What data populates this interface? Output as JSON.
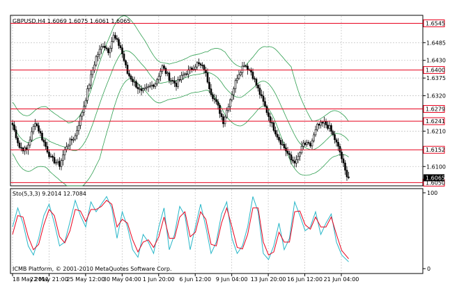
{
  "colors": {
    "background": "#ffffff",
    "grid": "#c8c8c8",
    "candle": "#000000",
    "bands": "#2e9e4f",
    "level_line": "#e8001c",
    "stoch_main": "#26b6c8",
    "stoch_signal": "#e8001c",
    "price_tag_bg": "#ffffff",
    "current_tag_bg": "#000000"
  },
  "chart_data": [
    {
      "type": "candlestick",
      "title": "GBPUSD,H4  1.6069 1.6075 1.6061 1.6065",
      "ylim": [
        1.604,
        1.657
      ],
      "y_ticks": [
        "1.6485",
        "1.6430",
        "1.6375",
        "1.6320",
        "1.6210",
        "1.6100"
      ],
      "x_ticks": [
        "18 May 2011",
        "22 May 21:00",
        "25 May 12:00",
        "30 May 04:00",
        "1 Jun 20:00",
        "6 Jun 12:00",
        "9 Jun 04:00",
        "13 Jun 20:00",
        "16 Jun 12:00",
        "21 Jun 04:00"
      ],
      "levels": [
        {
          "value": 1.6545,
          "label": "1.6545"
        },
        {
          "value": 1.64,
          "label": "1.6400"
        },
        {
          "value": 1.6279,
          "label": "1.6279"
        },
        {
          "value": 1.6241,
          "label": "1.6241"
        },
        {
          "value": 1.6152,
          "label": "1.6152"
        },
        {
          "value": 1.605,
          "label": "1.6050"
        }
      ],
      "current_price": {
        "value": 1.6065,
        "label": "1.6065"
      },
      "close_path": [
        [
          0,
          1.623
        ],
        [
          4,
          1.616
        ],
        [
          8,
          1.615
        ],
        [
          13,
          1.624
        ],
        [
          18,
          1.6175
        ],
        [
          22,
          1.6125
        ],
        [
          27,
          1.6105
        ],
        [
          31,
          1.6165
        ],
        [
          36,
          1.6195
        ],
        [
          41,
          1.629
        ],
        [
          45,
          1.638
        ],
        [
          48,
          1.644
        ],
        [
          52,
          1.648
        ],
        [
          55,
          1.646
        ],
        [
          58,
          1.6505
        ],
        [
          62,
          1.647
        ],
        [
          66,
          1.639
        ],
        [
          70,
          1.636
        ],
        [
          74,
          1.633
        ],
        [
          78,
          1.6345
        ],
        [
          82,
          1.636
        ],
        [
          86,
          1.641
        ],
        [
          90,
          1.6375
        ],
        [
          94,
          1.6355
        ],
        [
          98,
          1.6385
        ],
        [
          102,
          1.64
        ],
        [
          106,
          1.642
        ],
        [
          110,
          1.6405
        ],
        [
          114,
          1.633
        ],
        [
          118,
          1.6285
        ],
        [
          121,
          1.624
        ],
        [
          125,
          1.631
        ],
        [
          129,
          1.638
        ],
        [
          133,
          1.642
        ],
        [
          137,
          1.6395
        ],
        [
          141,
          1.634
        ],
        [
          145,
          1.6285
        ],
        [
          149,
          1.623
        ],
        [
          153,
          1.6185
        ],
        [
          157,
          1.615
        ],
        [
          160,
          1.612
        ],
        [
          163,
          1.6115
        ],
        [
          167,
          1.617
        ],
        [
          171,
          1.6165
        ],
        [
          175,
          1.6225
        ],
        [
          179,
          1.6235
        ],
        [
          182,
          1.622
        ],
        [
          185,
          1.6185
        ],
        [
          188,
          1.6145
        ],
        [
          191,
          1.6085
        ],
        [
          193,
          1.6065
        ]
      ],
      "bollinger_offsets": [
        [
          0,
          0.007,
          0.009
        ],
        [
          20,
          0.01,
          0.009
        ],
        [
          32,
          0.008,
          0.012
        ],
        [
          42,
          0.0115,
          0.013
        ],
        [
          50,
          0.013,
          0.017
        ],
        [
          58,
          0.0125,
          0.013
        ],
        [
          68,
          0.01,
          0.008
        ],
        [
          90,
          0.0055,
          0.0055
        ],
        [
          112,
          0.0065,
          0.0055
        ],
        [
          122,
          0.011,
          0.0085
        ],
        [
          134,
          0.009,
          0.009
        ],
        [
          146,
          0.011,
          0.0075
        ],
        [
          160,
          0.019,
          0.011
        ],
        [
          172,
          0.009,
          0.0075
        ],
        [
          186,
          0.007,
          0.007
        ],
        [
          193,
          0.006,
          0.005
        ]
      ]
    },
    {
      "type": "line",
      "title": "Sto(5,3,3) 9.2014 12.7084",
      "ylim": [
        0,
        100
      ],
      "y_ticks": [
        "100",
        "0"
      ],
      "series": [
        {
          "name": "Sto(5,3,3)",
          "points": [
            [
              0,
              55
            ],
            [
              3,
              80
            ],
            [
              6,
              60
            ],
            [
              9,
              30
            ],
            [
              12,
              18
            ],
            [
              15,
              40
            ],
            [
              18,
              70
            ],
            [
              21,
              85
            ],
            [
              24,
              60
            ],
            [
              27,
              30
            ],
            [
              30,
              35
            ],
            [
              33,
              62
            ],
            [
              36,
              90
            ],
            [
              39,
              70
            ],
            [
              42,
              55
            ],
            [
              45,
              88
            ],
            [
              48,
              75
            ],
            [
              51,
              85
            ],
            [
              54,
              95
            ],
            [
              57,
              80
            ],
            [
              60,
              40
            ],
            [
              63,
              75
            ],
            [
              66,
              55
            ],
            [
              69,
              25
            ],
            [
              72,
              15
            ],
            [
              75,
              45
            ],
            [
              78,
              35
            ],
            [
              81,
              20
            ],
            [
              84,
              55
            ],
            [
              87,
              80
            ],
            [
              90,
              25
            ],
            [
              93,
              45
            ],
            [
              96,
              82
            ],
            [
              99,
              70
            ],
            [
              102,
              25
            ],
            [
              105,
              55
            ],
            [
              108,
              85
            ],
            [
              111,
              55
            ],
            [
              114,
              20
            ],
            [
              117,
              35
            ],
            [
              120,
              72
            ],
            [
              123,
              88
            ],
            [
              126,
              40
            ],
            [
              129,
              20
            ],
            [
              132,
              30
            ],
            [
              135,
              55
            ],
            [
              138,
              95
            ],
            [
              141,
              75
            ],
            [
              144,
              20
            ],
            [
              147,
              12
            ],
            [
              150,
              30
            ],
            [
              153,
              60
            ],
            [
              156,
              25
            ],
            [
              159,
              40
            ],
            [
              162,
              88
            ],
            [
              165,
              70
            ],
            [
              168,
              50
            ],
            [
              171,
              55
            ],
            [
              174,
              75
            ],
            [
              177,
              45
            ],
            [
              180,
              60
            ],
            [
              183,
              72
            ],
            [
              186,
              35
            ],
            [
              189,
              18
            ],
            [
              193,
              9
            ]
          ]
        },
        {
          "name": "Signal",
          "points": [
            [
              0,
              45
            ],
            [
              3,
              70
            ],
            [
              6,
              68
            ],
            [
              9,
              42
            ],
            [
              12,
              25
            ],
            [
              15,
              32
            ],
            [
              18,
              58
            ],
            [
              21,
              78
            ],
            [
              24,
              70
            ],
            [
              27,
              42
            ],
            [
              30,
              34
            ],
            [
              33,
              50
            ],
            [
              36,
              78
            ],
            [
              39,
              76
            ],
            [
              42,
              62
            ],
            [
              45,
              78
            ],
            [
              48,
              78
            ],
            [
              51,
              82
            ],
            [
              54,
              90
            ],
            [
              57,
              85
            ],
            [
              60,
              55
            ],
            [
              63,
              65
            ],
            [
              66,
              60
            ],
            [
              69,
              38
            ],
            [
              72,
              22
            ],
            [
              75,
              35
            ],
            [
              78,
              38
            ],
            [
              81,
              28
            ],
            [
              84,
              42
            ],
            [
              87,
              68
            ],
            [
              90,
              40
            ],
            [
              93,
              40
            ],
            [
              96,
              68
            ],
            [
              99,
              75
            ],
            [
              102,
              42
            ],
            [
              105,
              48
            ],
            [
              108,
              75
            ],
            [
              111,
              65
            ],
            [
              114,
              32
            ],
            [
              117,
              30
            ],
            [
              120,
              60
            ],
            [
              123,
              80
            ],
            [
              126,
              55
            ],
            [
              129,
              28
            ],
            [
              132,
              26
            ],
            [
              135,
              45
            ],
            [
              138,
              80
            ],
            [
              141,
              80
            ],
            [
              144,
              35
            ],
            [
              147,
              18
            ],
            [
              150,
              22
            ],
            [
              153,
              48
            ],
            [
              156,
              35
            ],
            [
              159,
              35
            ],
            [
              162,
              75
            ],
            [
              165,
              76
            ],
            [
              168,
              58
            ],
            [
              171,
              52
            ],
            [
              174,
              68
            ],
            [
              177,
              55
            ],
            [
              180,
              55
            ],
            [
              183,
              68
            ],
            [
              186,
              45
            ],
            [
              189,
              24
            ],
            [
              193,
              13
            ]
          ]
        }
      ]
    }
  ],
  "footer": {
    "copyright": "ICMB Platform, © 2001-2010 MetaQuotes Software Corp."
  }
}
